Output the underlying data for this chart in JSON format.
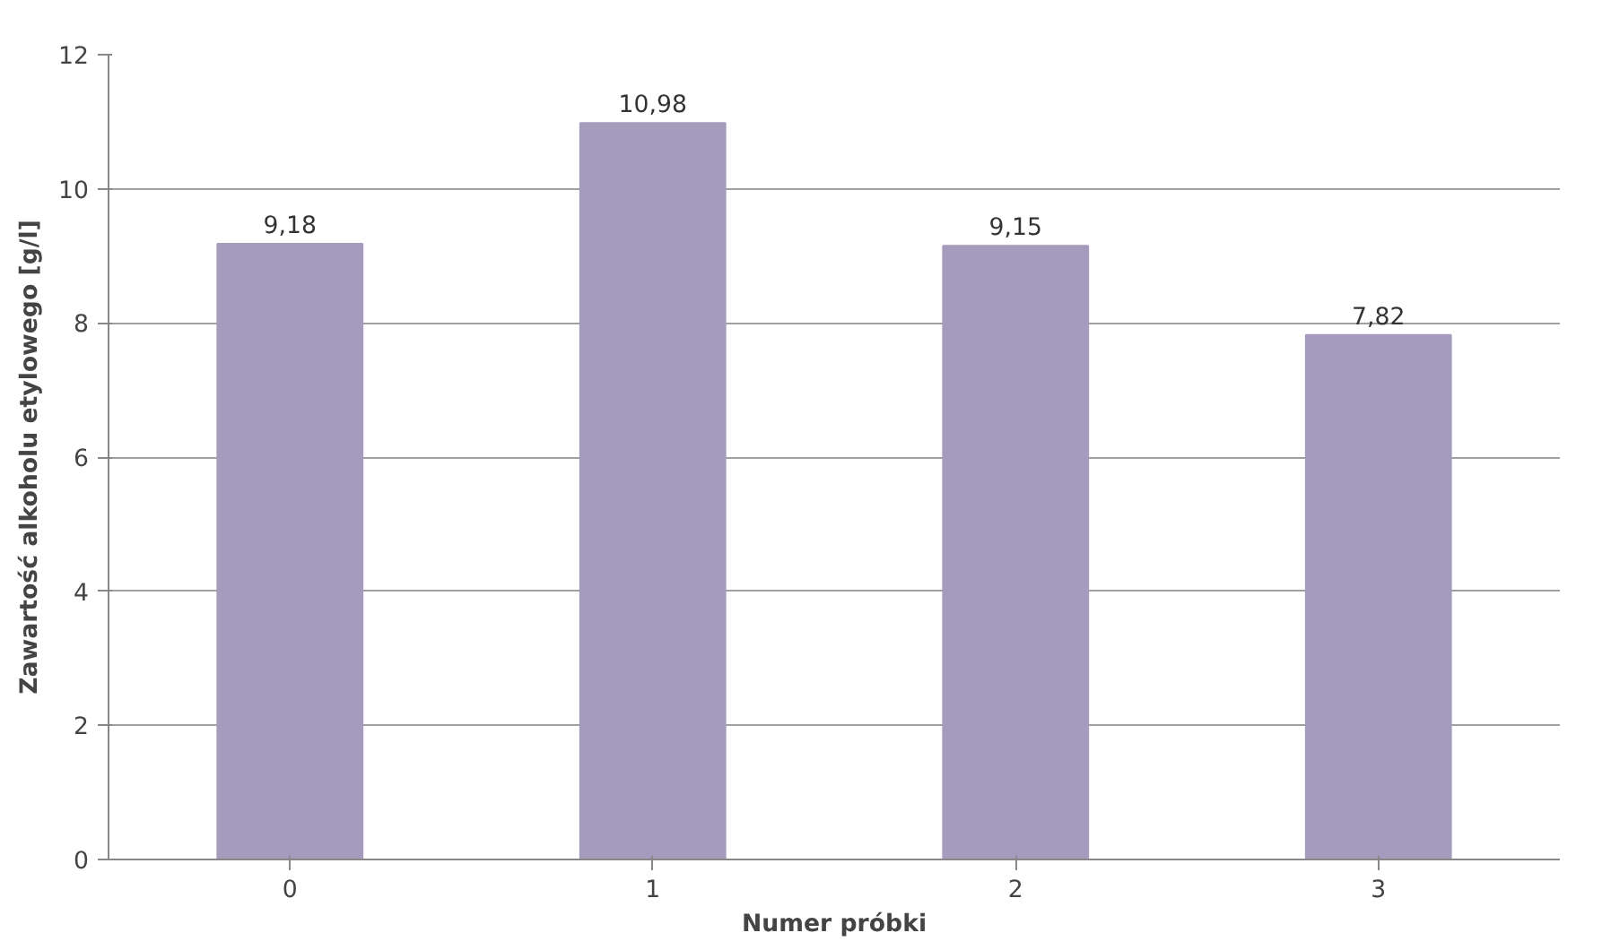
{
  "chart_data": {
    "type": "bar",
    "xlabel": "Numer próbki",
    "ylabel": "Zawartość alkoholu etylowego [g/l]",
    "categories": [
      "0",
      "1",
      "2",
      "3"
    ],
    "values": [
      9.18,
      10.98,
      9.15,
      7.82
    ],
    "value_labels": [
      "9,18",
      "10,98",
      "9,15",
      "7,82"
    ],
    "color": "#a59bbd",
    "ylim": [
      0,
      12
    ],
    "yticks": [
      0,
      2,
      4,
      6,
      8,
      10,
      12
    ],
    "grid": "y"
  }
}
